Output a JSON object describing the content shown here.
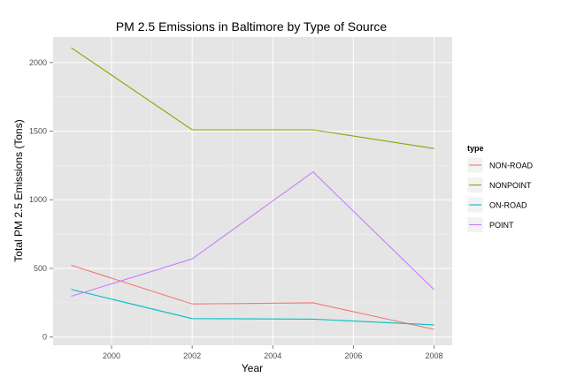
{
  "chart_data": {
    "type": "line",
    "title": "PM 2.5 Emissions in Baltimore by Type of Source",
    "xlabel": "Year",
    "ylabel": "Total PM 2.5 Emissions (Tons)",
    "x": [
      1999,
      2002,
      2005,
      2008
    ],
    "xlim": [
      1998.55,
      2008.45
    ],
    "ylim": [
      -60,
      2185
    ],
    "x_ticks": [
      2000,
      2002,
      2004,
      2006,
      2008
    ],
    "y_ticks": [
      0,
      500,
      1000,
      1500,
      2000
    ],
    "grid": true,
    "legend": {
      "title": "type",
      "position": "right"
    },
    "series": [
      {
        "name": "NON-ROAD",
        "color": "#F8766D",
        "values": [
          522.94,
          240.85,
          248.93,
          55.82
        ]
      },
      {
        "name": "NONPOINT",
        "color": "#7CAE00",
        "values": [
          2107.63,
          1509.5,
          1509.5,
          1373.21
        ]
      },
      {
        "name": "ON-ROAD",
        "color": "#00BFC4",
        "values": [
          346.82,
          134.31,
          130.43,
          88.28
        ]
      },
      {
        "name": "POINT",
        "color": "#C77CFF",
        "values": [
          296.8,
          569.26,
          1202.49,
          344.98
        ]
      }
    ]
  }
}
